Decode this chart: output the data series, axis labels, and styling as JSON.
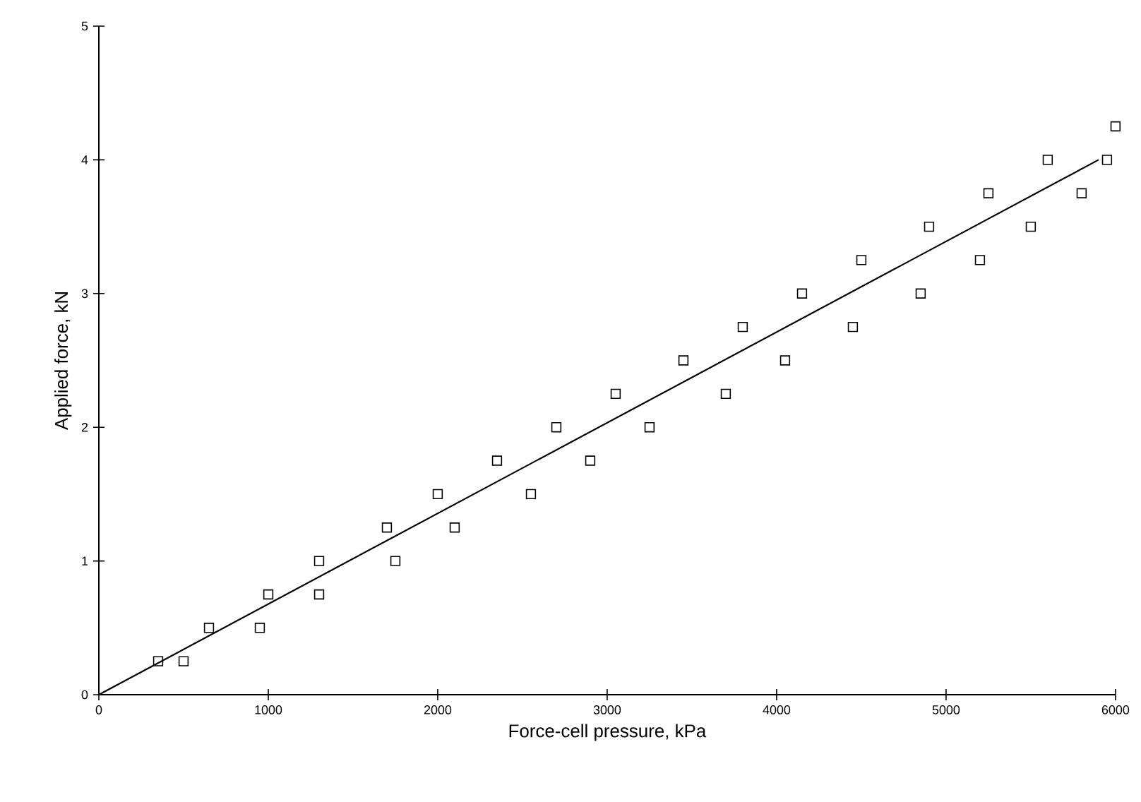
{
  "chart_data": {
    "type": "scatter",
    "xlabel": "Force-cell  pressure,  kPa",
    "ylabel": "Applied  force,  kN",
    "xlim": [
      0,
      6000
    ],
    "ylim": [
      0,
      5
    ],
    "xticks": [
      0,
      1000,
      2000,
      3000,
      4000,
      5000,
      6000
    ],
    "yticks": [
      0,
      1,
      2,
      3,
      4,
      5
    ],
    "grid": false,
    "series": [
      {
        "type": "scatter",
        "marker": "square",
        "color": "#000000",
        "x": [
          350,
          500,
          650,
          950,
          1000,
          1300,
          1300,
          1750,
          1700,
          2100,
          2000,
          2550,
          2350,
          2900,
          2700,
          3250,
          3050,
          3700,
          3450,
          4050,
          3800,
          4450,
          4150,
          4850,
          4500,
          5200,
          4900,
          5500,
          5250,
          5800,
          5600,
          5950,
          6000
        ],
        "values": [
          0.25,
          0.25,
          0.5,
          0.5,
          0.75,
          0.75,
          1.0,
          1.0,
          1.25,
          1.25,
          1.5,
          1.5,
          1.75,
          1.75,
          2.0,
          2.0,
          2.25,
          2.25,
          2.5,
          2.5,
          2.75,
          2.75,
          3.0,
          3.0,
          3.25,
          3.25,
          3.5,
          3.5,
          3.75,
          3.75,
          4.0,
          4.0,
          4.25
        ]
      },
      {
        "type": "line",
        "color": "#000000",
        "x": [
          0,
          5900
        ],
        "values": [
          0,
          4.0
        ]
      }
    ]
  }
}
